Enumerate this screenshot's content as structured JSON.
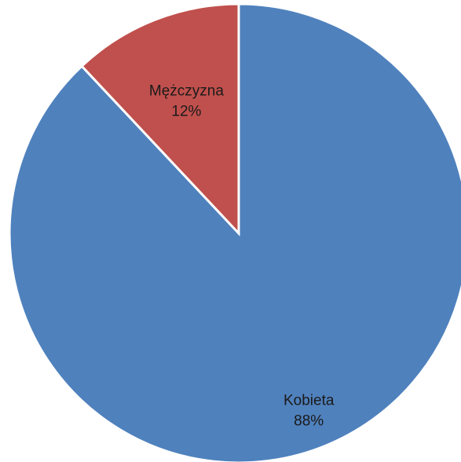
{
  "chart_data": {
    "type": "pie",
    "start": "12 o'clock",
    "direction": "clockwise",
    "slices": [
      {
        "label": "Kobieta",
        "percent_label": "88%",
        "value": 88,
        "color": "#4F81BD"
      },
      {
        "label": "Mężczyzna",
        "percent_label": "12%",
        "value": 12,
        "color": "#C0504D"
      }
    ],
    "slice_border_color": "#ffffff"
  }
}
